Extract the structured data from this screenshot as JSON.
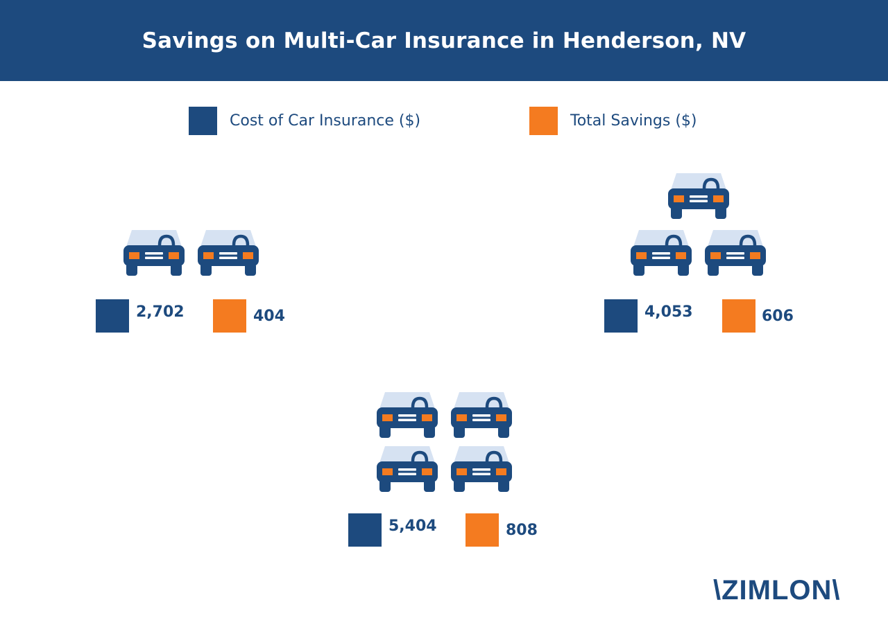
{
  "title": "Savings on Multi-Car Insurance in Henderson, NV",
  "legend": {
    "cost_label": "Cost of Car Insurance ($)",
    "savings_label": "Total Savings ($)"
  },
  "colors": {
    "cost": "#1d4a7e",
    "savings": "#f47b20",
    "windshield": "#d6e2f2",
    "header": "#1d4a7e"
  },
  "logo": "\\ZIMLON\\",
  "chart_data": {
    "type": "bar",
    "categories": [
      "2 cars",
      "3 cars",
      "4 cars"
    ],
    "series": [
      {
        "name": "Cost of Car Insurance ($)",
        "values": [
          2702,
          4053,
          5404
        ]
      },
      {
        "name": "Total Savings ($)",
        "values": [
          404,
          606,
          808
        ]
      }
    ],
    "labels": {
      "cost": [
        "2,702",
        "4,053",
        "5,404"
      ],
      "savings": [
        "404",
        "606",
        "808"
      ]
    },
    "icons": "car-icon",
    "legend_position": "top"
  }
}
